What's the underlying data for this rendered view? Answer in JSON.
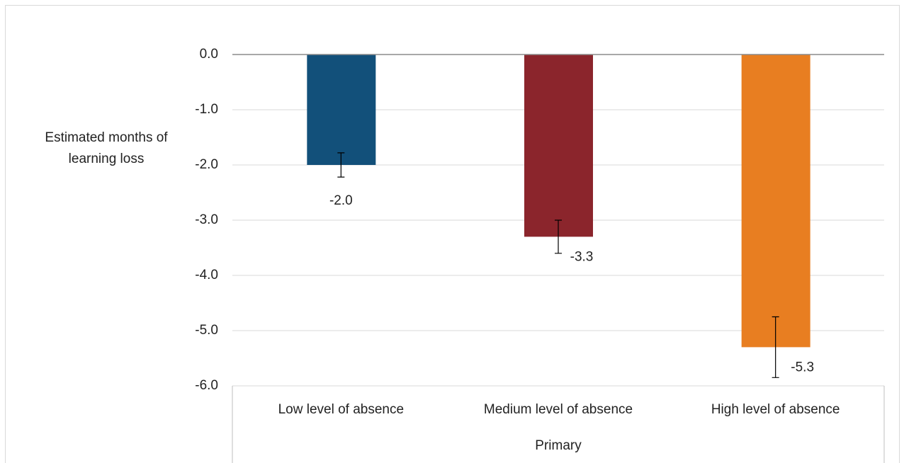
{
  "chart_data": {
    "type": "bar",
    "y_label": "Estimated months of learning loss",
    "group_label": "Primary",
    "categories": [
      "Low level of absence",
      "Medium level of absence",
      "High level of absence"
    ],
    "values": [
      -2.0,
      -3.3,
      -5.3
    ],
    "value_labels": [
      "-2.0",
      "-3.3",
      "-5.3"
    ],
    "errors": [
      0.22,
      0.3,
      0.55
    ],
    "colors": [
      "#12507a",
      "#8b252c",
      "#e87e21"
    ],
    "ylim": [
      -6,
      0
    ],
    "yticks": [
      {
        "value": 0,
        "label": "0.0"
      },
      {
        "value": -1,
        "label": "-1.0"
      },
      {
        "value": -2,
        "label": "-2.0"
      },
      {
        "value": -3,
        "label": "-3.0"
      },
      {
        "value": -4,
        "label": "-4.0"
      },
      {
        "value": -5,
        "label": "-5.0"
      },
      {
        "value": -6,
        "label": "-6.0"
      }
    ],
    "grid": true
  }
}
